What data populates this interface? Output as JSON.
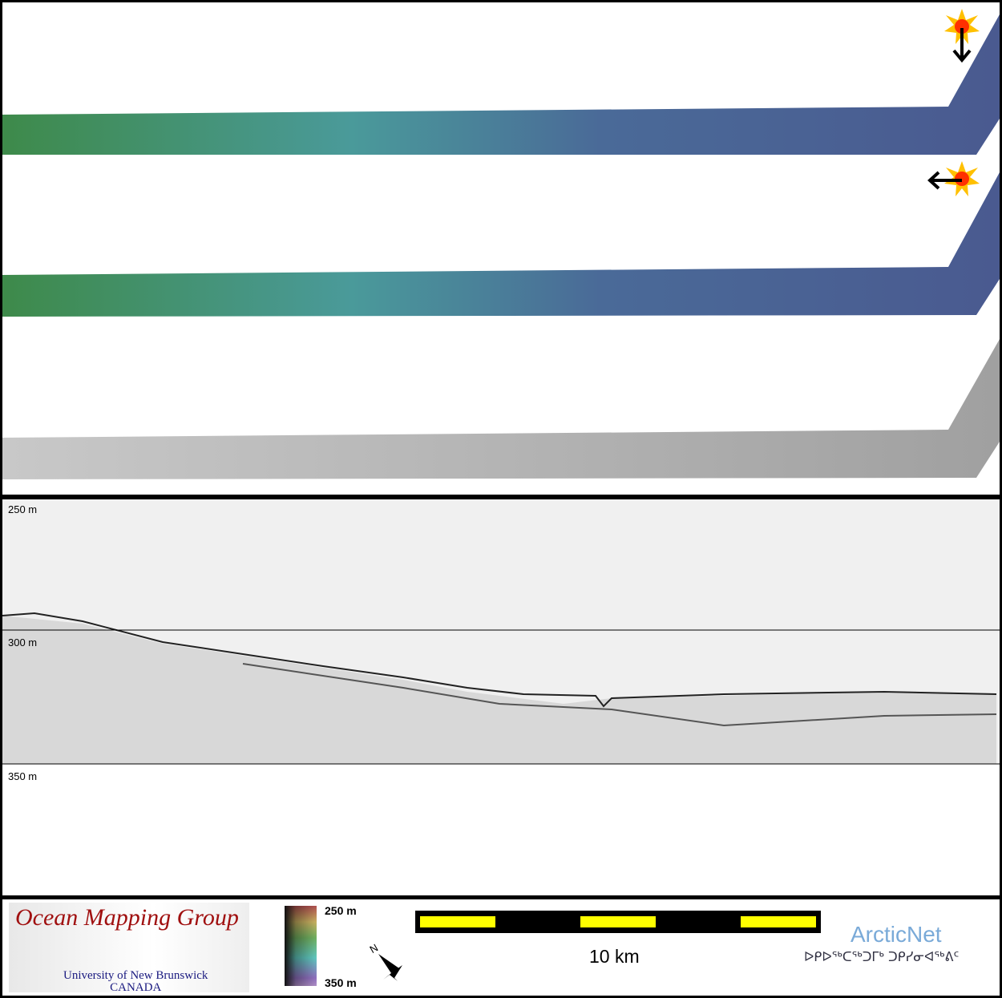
{
  "profile": {
    "depth_labels": [
      "250 m",
      "300 m",
      "350 m"
    ]
  },
  "legend": {
    "logo_title": "Ocean Mapping Group",
    "logo_university": "University of New Brunswick",
    "logo_country": "CANADA",
    "colorbar_top": "250 m",
    "colorbar_bottom": "350 m",
    "north_label": "N",
    "scale_label": "10 km",
    "partner_name": "ArcticNet",
    "partner_syllabics": "ᐅᑭᐅᖅᑕᖅᑐᒥᒃ ᑐᑭᓯᓂᐊᖅᕕᑦ"
  },
  "icons": {
    "sun_1": "sun-illumination-icon",
    "arrow_1": "arrow-down-icon",
    "sun_2": "sun-illumination-icon",
    "arrow_2": "arrow-left-icon"
  },
  "colors": {
    "swath_shallow": "#3e8a4a",
    "swath_mid": "#4a9a9a",
    "swath_deep": "#4a5a90",
    "backscatter": "#9a9a9a",
    "scale_fill": "#ffff00"
  }
}
